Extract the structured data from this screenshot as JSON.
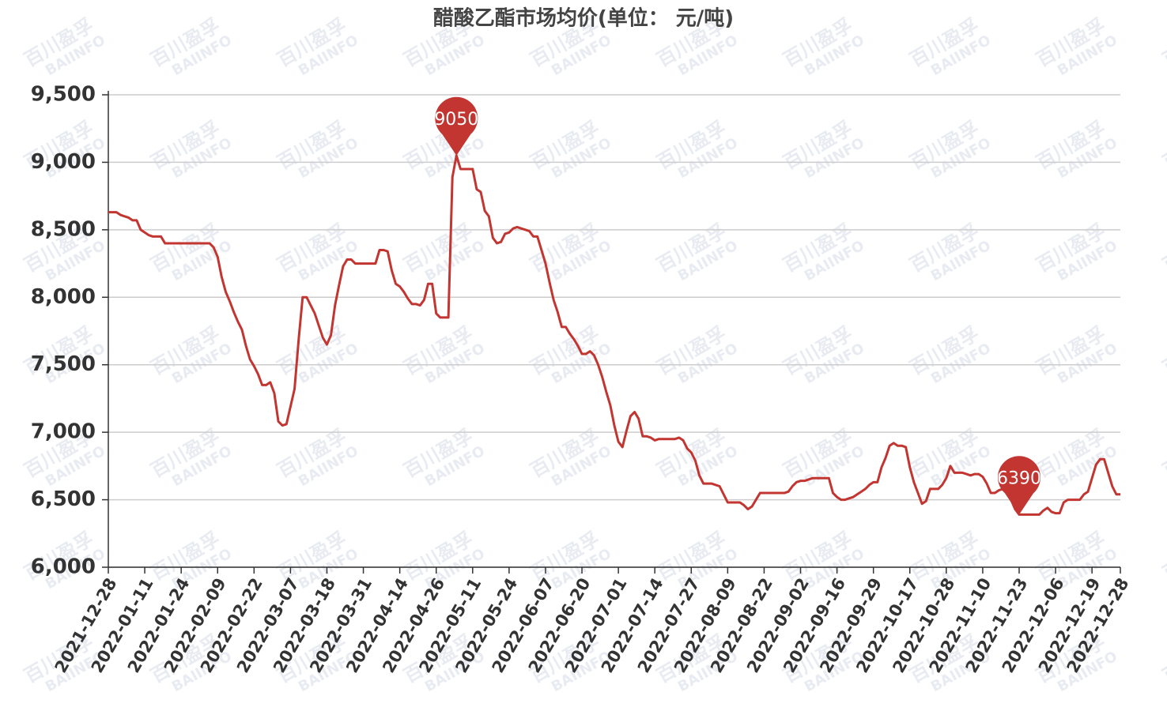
{
  "chart_data": {
    "type": "line",
    "title": "醋酸乙酯市场均价(单位：  元/吨)",
    "watermark": [
      "百川盈孚",
      "BAIINFO"
    ],
    "categories": [
      "2021-12-28",
      null,
      null,
      null,
      null,
      null,
      null,
      null,
      null,
      "2022-01-11",
      null,
      null,
      null,
      null,
      null,
      null,
      null,
      null,
      "2022-01-24",
      null,
      null,
      null,
      null,
      null,
      null,
      null,
      null,
      "2022-02-09",
      null,
      null,
      null,
      null,
      null,
      null,
      null,
      null,
      "2022-02-22",
      null,
      null,
      null,
      null,
      null,
      null,
      null,
      null,
      "2022-03-07",
      null,
      null,
      null,
      null,
      null,
      null,
      null,
      null,
      "2022-03-18",
      null,
      null,
      null,
      null,
      null,
      null,
      null,
      null,
      "2022-03-31",
      null,
      null,
      null,
      null,
      null,
      null,
      null,
      null,
      "2022-04-14",
      null,
      null,
      null,
      null,
      null,
      null,
      null,
      null,
      "2022-04-26",
      null,
      null,
      null,
      null,
      null,
      null,
      null,
      null,
      "2022-05-11",
      null,
      null,
      null,
      null,
      null,
      null,
      null,
      null,
      "2022-05-24",
      null,
      null,
      null,
      null,
      null,
      null,
      null,
      null,
      "2022-06-07",
      null,
      null,
      null,
      null,
      null,
      null,
      null,
      null,
      "2022-06-20",
      null,
      null,
      null,
      null,
      null,
      null,
      null,
      null,
      "2022-07-01",
      null,
      null,
      null,
      null,
      null,
      null,
      null,
      null,
      "2022-07-14",
      null,
      null,
      null,
      null,
      null,
      null,
      null,
      null,
      "2022-07-27",
      null,
      null,
      null,
      null,
      null,
      null,
      null,
      null,
      "2022-08-09",
      null,
      null,
      null,
      null,
      null,
      null,
      null,
      null,
      "2022-08-22",
      null,
      null,
      null,
      null,
      null,
      null,
      null,
      null,
      "2022-09-02",
      null,
      null,
      null,
      null,
      null,
      null,
      null,
      null,
      "2022-09-16",
      null,
      null,
      null,
      null,
      null,
      null,
      null,
      null,
      "2022-09-29",
      null,
      null,
      null,
      null,
      null,
      null,
      null,
      null,
      "2022-10-17",
      null,
      null,
      null,
      null,
      null,
      null,
      null,
      null,
      "2022-10-28",
      null,
      null,
      null,
      null,
      null,
      null,
      null,
      null,
      "2022-11-10",
      null,
      null,
      null,
      null,
      null,
      null,
      null,
      null,
      "2022-11-23",
      null,
      null,
      null,
      null,
      null,
      null,
      null,
      null,
      "2022-12-06",
      null,
      null,
      null,
      null,
      null,
      null,
      null,
      null,
      "2022-12-19",
      null,
      null,
      null,
      null,
      null,
      null,
      "2022-12-28"
    ],
    "series": [
      {
        "color": "#c23531",
        "values": [
          8630,
          8630,
          8630,
          8610,
          8600,
          8590,
          8570,
          8570,
          8500,
          8480,
          8460,
          8450,
          8450,
          8450,
          8400,
          8400,
          8400,
          8400,
          8400,
          8400,
          8400,
          8400,
          8400,
          8400,
          8400,
          8400,
          8370,
          8300,
          8150,
          8040,
          7970,
          7890,
          7820,
          7760,
          7640,
          7540,
          7490,
          7430,
          7350,
          7350,
          7370,
          7290,
          7080,
          7050,
          7060,
          7190,
          7320,
          7680,
          8000,
          8000,
          7940,
          7880,
          7790,
          7700,
          7650,
          7720,
          7940,
          8090,
          8230,
          8280,
          8280,
          8250,
          8250,
          8250,
          8250,
          8250,
          8250,
          8350,
          8350,
          8340,
          8200,
          8100,
          8080,
          8040,
          7990,
          7950,
          7950,
          7940,
          7980,
          8100,
          8100,
          7880,
          7850,
          7850,
          7850,
          8890,
          9050,
          8950,
          8950,
          8950,
          8950,
          8800,
          8780,
          8640,
          8600,
          8440,
          8400,
          8410,
          8470,
          8480,
          8510,
          8520,
          8510,
          8500,
          8490,
          8450,
          8450,
          8350,
          8250,
          8110,
          7980,
          7890,
          7780,
          7780,
          7730,
          7690,
          7640,
          7580,
          7580,
          7600,
          7570,
          7500,
          7410,
          7300,
          7200,
          7050,
          6930,
          6890,
          7010,
          7120,
          7150,
          7100,
          6970,
          6970,
          6960,
          6940,
          6950,
          6950,
          6950,
          6950,
          6950,
          6960,
          6940,
          6880,
          6850,
          6790,
          6680,
          6620,
          6620,
          6620,
          6610,
          6600,
          6540,
          6480,
          6480,
          6480,
          6480,
          6460,
          6430,
          6450,
          6500,
          6550,
          6550,
          6550,
          6550,
          6550,
          6550,
          6550,
          6560,
          6600,
          6630,
          6640,
          6640,
          6650,
          6660,
          6660,
          6660,
          6660,
          6660,
          6550,
          6520,
          6500,
          6500,
          6510,
          6520,
          6540,
          6560,
          6580,
          6610,
          6630,
          6630,
          6740,
          6810,
          6900,
          6920,
          6900,
          6900,
          6890,
          6740,
          6630,
          6550,
          6470,
          6490,
          6580,
          6580,
          6580,
          6610,
          6660,
          6750,
          6700,
          6700,
          6700,
          6690,
          6680,
          6690,
          6690,
          6670,
          6620,
          6550,
          6550,
          6570,
          6580,
          6570,
          6500,
          6430,
          6390,
          6390,
          6390,
          6390,
          6390,
          6390,
          6420,
          6440,
          6410,
          6400,
          6400,
          6480,
          6500,
          6500,
          6500,
          6500,
          6540,
          6560,
          6660,
          6760,
          6800,
          6800,
          6700,
          6600,
          6540,
          6540
        ]
      }
    ],
    "ylim": [
      6000,
      9500
    ],
    "yticks": [
      {
        "value": 6000,
        "label": "6,000"
      },
      {
        "value": 6500,
        "label": "6,500"
      },
      {
        "value": 7000,
        "label": "7,000"
      },
      {
        "value": 7500,
        "label": "7,500"
      },
      {
        "value": 8000,
        "label": "8,000"
      },
      {
        "value": 8500,
        "label": "8,500"
      },
      {
        "value": 9000,
        "label": "9,000"
      },
      {
        "value": 9500,
        "label": "9,500"
      }
    ],
    "grid": true
  }
}
